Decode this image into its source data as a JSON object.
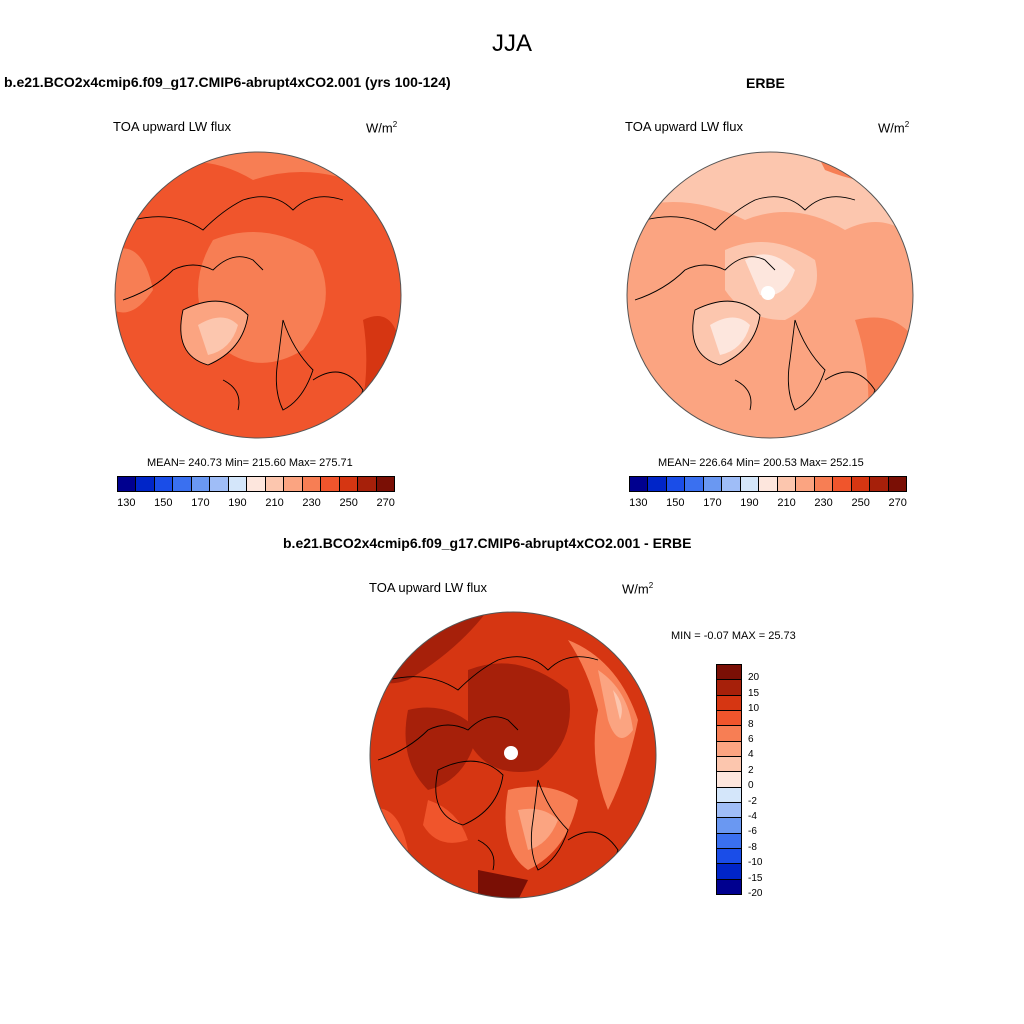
{
  "page": {
    "title": "JJA"
  },
  "colors": {
    "levels": [
      "#00008f",
      "#0025c8",
      "#1a4de8",
      "#3a70f0",
      "#6a98f2",
      "#9fbdf7",
      "#d4e6fa",
      "#fde6dd",
      "#fcc6ae",
      "#fba481",
      "#f77e54",
      "#f0552c",
      "#d63612",
      "#a6200a",
      "#7a0f05"
    ],
    "diff_levels": [
      "#7a0f05",
      "#a6200a",
      "#d63612",
      "#f0552c",
      "#f77e54",
      "#fba481",
      "#fcc6ae",
      "#fde6dd",
      "#d4e6fa",
      "#9fbdf7",
      "#6a98f2",
      "#3a70f0",
      "#1a4de8",
      "#0025c8",
      "#00008f"
    ]
  },
  "panels": {
    "model": {
      "title": "b.e21.BCO2x4cmip6.f09_g17.CMIP6-abrupt4xCO2.001 (yrs 100-124)",
      "variable": "TOA upward LW flux",
      "unit_base": "W/m",
      "unit_exp": "2",
      "stats": "MEAN= 240.73  Min= 215.60  Max= 275.71",
      "ticks": [
        "130",
        "150",
        "170",
        "190",
        "210",
        "230",
        "250",
        "270"
      ]
    },
    "obs": {
      "title": "ERBE",
      "variable": "TOA upward LW flux",
      "unit_base": "W/m",
      "unit_exp": "2",
      "stats": "MEAN= 226.64  Min= 200.53  Max= 252.15",
      "ticks": [
        "130",
        "150",
        "170",
        "190",
        "210",
        "230",
        "250",
        "270"
      ]
    },
    "diff": {
      "title": "b.e21.BCO2x4cmip6.f09_g17.CMIP6-abrupt4xCO2.001 - ERBE",
      "variable": "TOA upward LW flux",
      "unit_base": "W/m",
      "unit_exp": "2",
      "stats": "MIN =  -0.07 MAX =  25.73",
      "ticks": [
        "20",
        "15",
        "10",
        "8",
        "6",
        "4",
        "2",
        "0",
        "-2",
        "-4",
        "-6",
        "-8",
        "-10",
        "-15",
        "-20"
      ]
    }
  }
}
